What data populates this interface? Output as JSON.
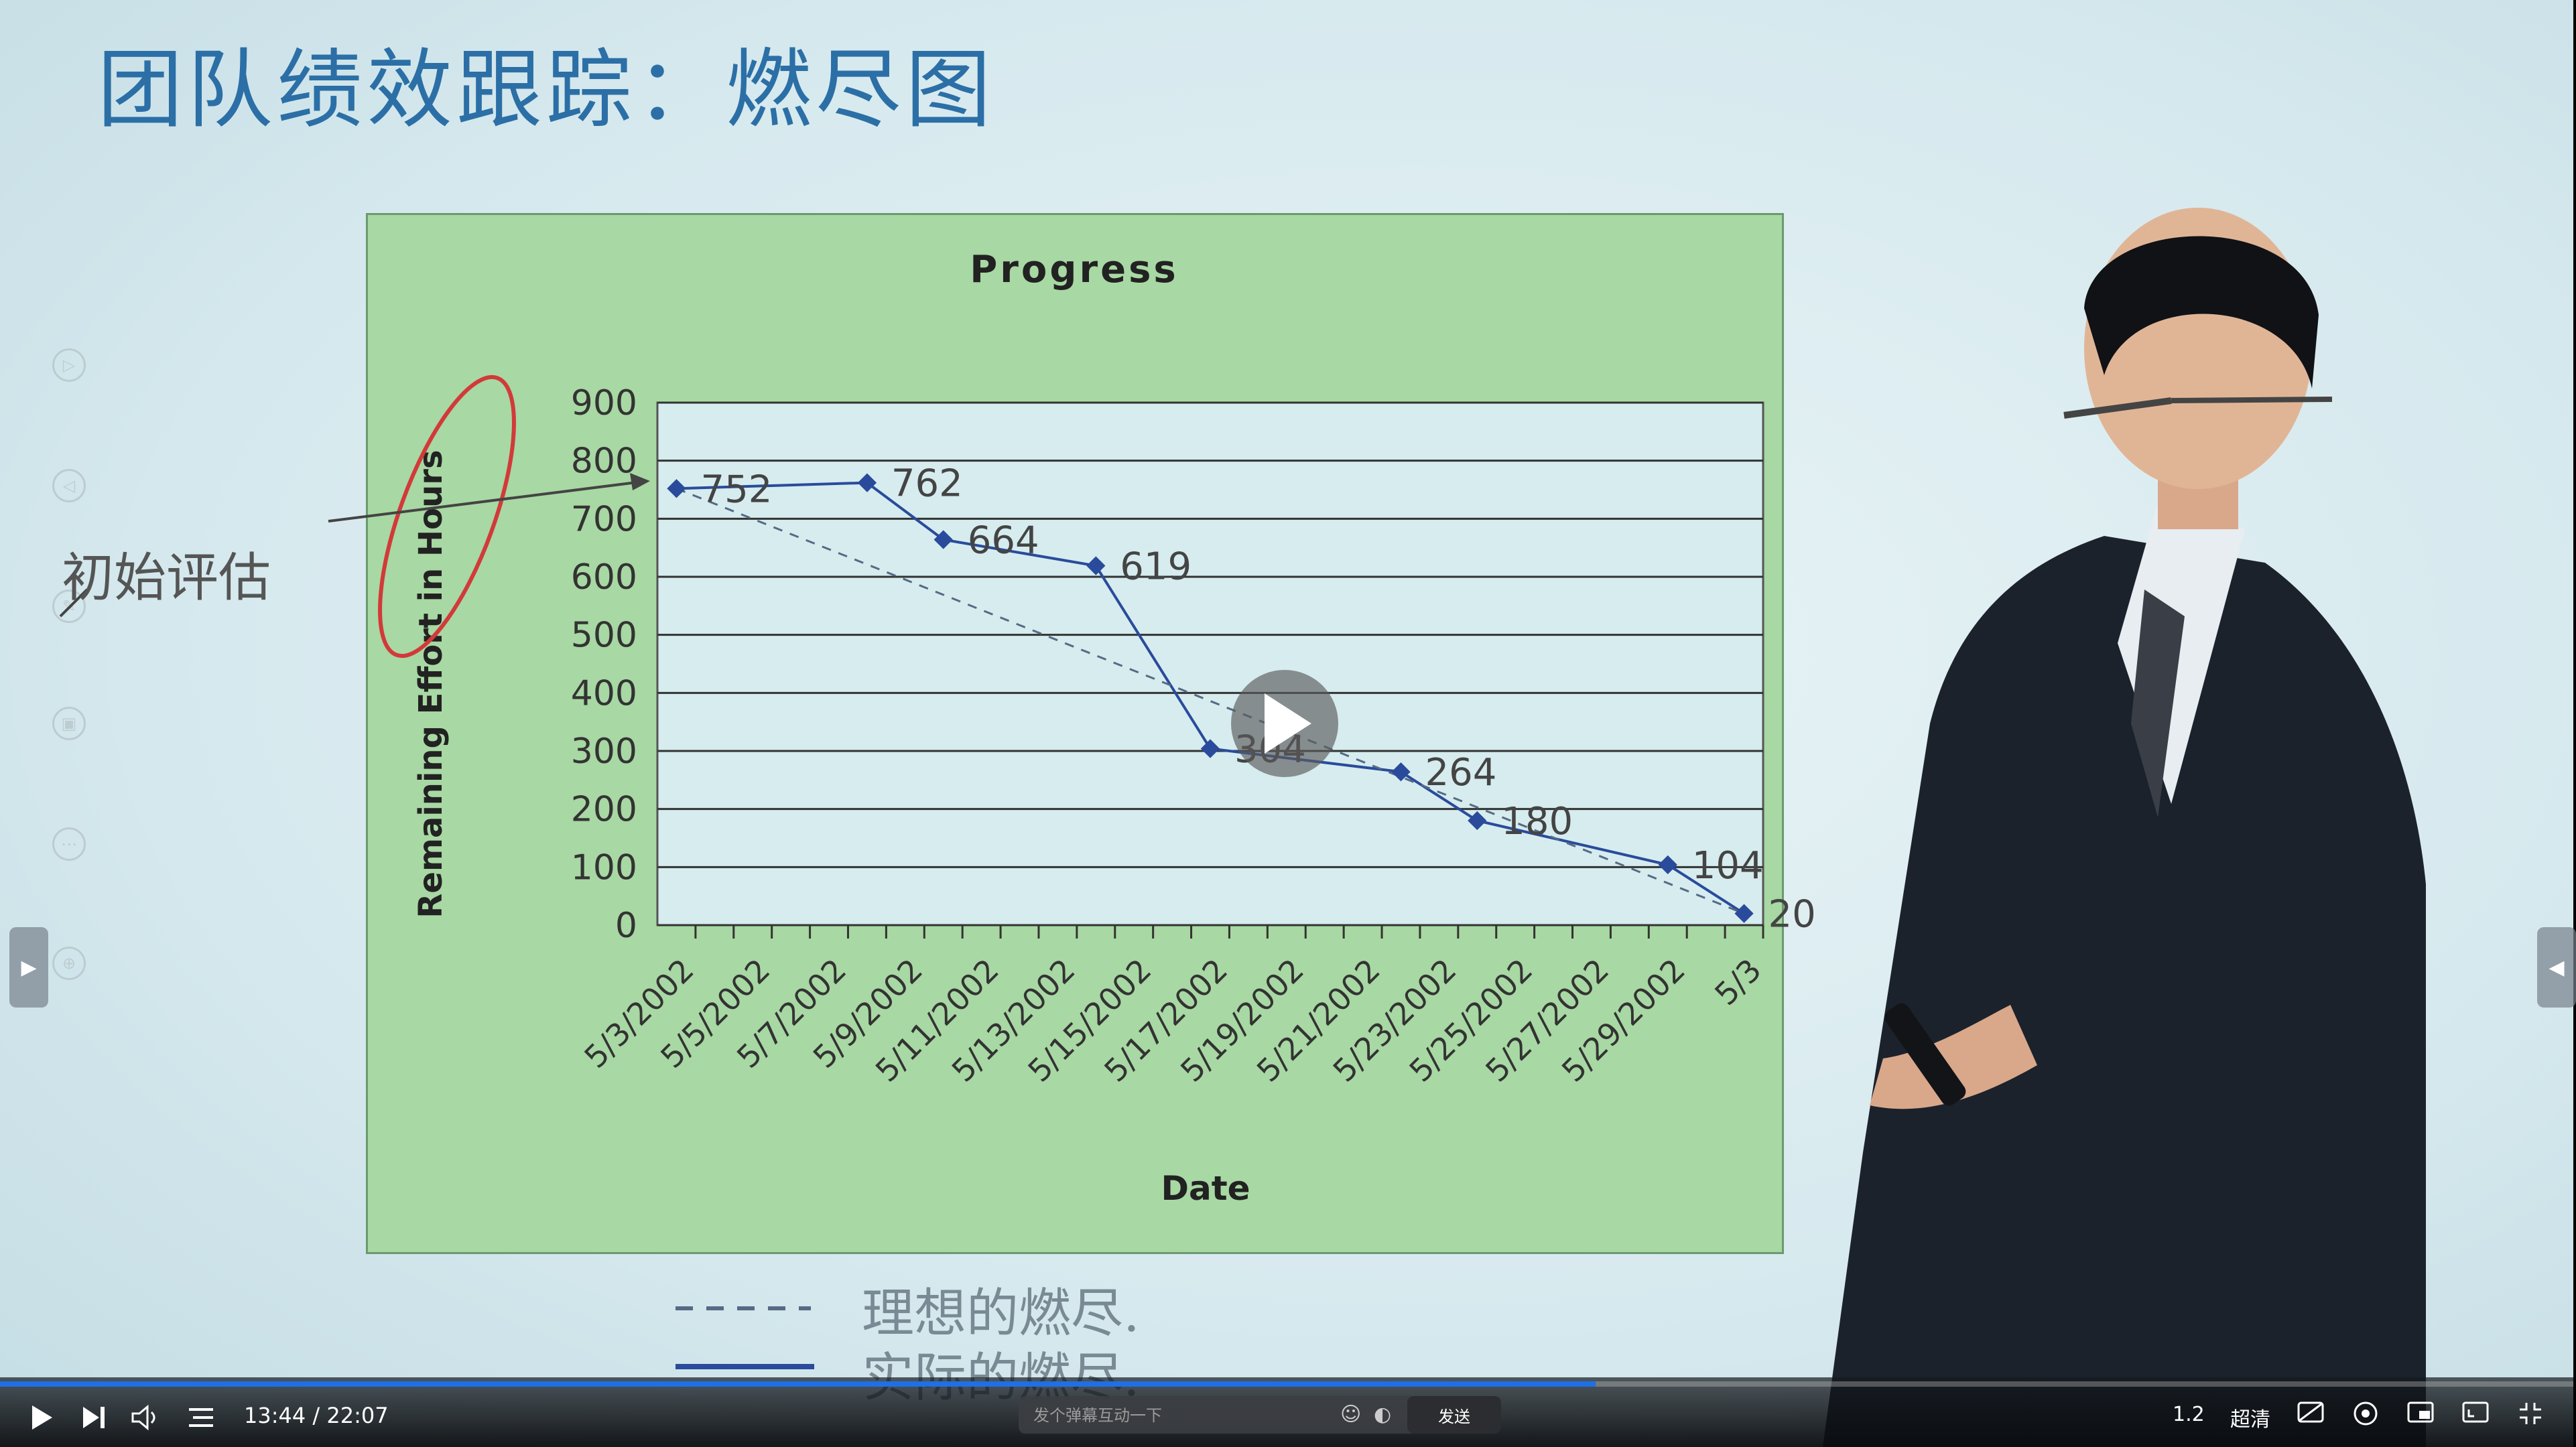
{
  "slide": {
    "title": "团队绩效跟踪：燃尽图",
    "annotation": "初始评估",
    "legend": [
      {
        "label": "理想的燃尽.",
        "style": "dashed"
      },
      {
        "label": "实际的燃尽.",
        "style": "solid"
      }
    ]
  },
  "chart_data": {
    "type": "line",
    "title": "Progress",
    "xlabel": "Date",
    "ylabel": "Remaining Effort in Hours",
    "ylim": [
      0,
      900
    ],
    "yticks": [
      "0",
      "100",
      "200",
      "300",
      "400",
      "500",
      "600",
      "700",
      "800",
      "900"
    ],
    "categories": [
      "5/3/2002",
      "5/5/2002",
      "5/7/2002",
      "5/9/2002",
      "5/11/2002",
      "5/13/2002",
      "5/15/2002",
      "5/17/2002",
      "5/19/2002",
      "5/21/2002",
      "5/23/2002",
      "5/25/2002",
      "5/27/2002",
      "5/29/2002",
      "5/3"
    ],
    "x_range_days": [
      0,
      29
    ],
    "series": [
      {
        "name": "Actual",
        "style": "solid",
        "points": [
          {
            "day": 0.5,
            "value": 752,
            "label": "752"
          },
          {
            "day": 5.5,
            "value": 762,
            "label": "762"
          },
          {
            "day": 7.5,
            "value": 664,
            "label": "664"
          },
          {
            "day": 11.5,
            "value": 619,
            "label": "619"
          },
          {
            "day": 14.5,
            "value": 304,
            "label": "304"
          },
          {
            "day": 19.5,
            "value": 264,
            "label": "264"
          },
          {
            "day": 21.5,
            "value": 180,
            "label": "180"
          },
          {
            "day": 26.5,
            "value": 104,
            "label": "104"
          },
          {
            "day": 28.5,
            "value": 20,
            "label": "20"
          }
        ]
      },
      {
        "name": "Ideal",
        "style": "dashed",
        "points": [
          {
            "day": 0.5,
            "value": 752
          },
          {
            "day": 28.5,
            "value": 20
          }
        ]
      }
    ],
    "colors": {
      "line": "#2a4b9b",
      "grid": "#333333",
      "plot_bg": "#d6ecef",
      "frame_bg": "#a8d8a3"
    }
  },
  "player": {
    "current_time": "13:44",
    "duration": "22:07",
    "progress": 0.62,
    "danmaku_placeholder": "发个弹幕互动一下",
    "send_label": "发送",
    "speed": "1.2",
    "quality": "超清",
    "accent": "#1f6fe6"
  }
}
